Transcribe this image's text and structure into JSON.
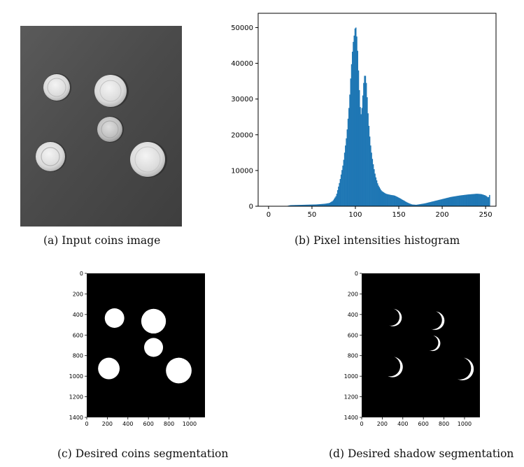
{
  "captions": {
    "a": "(a) Input coins image",
    "b": "(b) Pixel intensities histogram",
    "c": "(c) Desired coins segmentation",
    "d": "(d) Desired shadow segmentation"
  },
  "colors": {
    "histogram_bar": "#1f77b4",
    "photo_background": "#4b4b4b",
    "coin_light": "#e8e8e8",
    "mask_background": "#000000",
    "mask_foreground": "#ffffff"
  },
  "chart_data": [
    {
      "type": "bar",
      "title": "",
      "xlabel": "",
      "ylabel": "",
      "xlim": [
        -12,
        262
      ],
      "ylim": [
        0,
        54000
      ],
      "x_ticks": [
        0,
        50,
        100,
        150,
        200,
        250
      ],
      "y_ticks": [
        0,
        10000,
        20000,
        30000,
        40000,
        50000
      ],
      "grid": false,
      "anchors": [
        [
          0,
          0
        ],
        [
          20,
          0
        ],
        [
          25,
          300
        ],
        [
          40,
          400
        ],
        [
          55,
          500
        ],
        [
          65,
          700
        ],
        [
          70,
          900
        ],
        [
          74,
          1500
        ],
        [
          78,
          3000
        ],
        [
          82,
          7000
        ],
        [
          86,
          12000
        ],
        [
          90,
          20000
        ],
        [
          93,
          29000
        ],
        [
          95,
          38000
        ],
        [
          97,
          45000
        ],
        [
          98,
          47000
        ],
        [
          99,
          48500
        ],
        [
          100,
          51000
        ],
        [
          101,
          49000
        ],
        [
          102,
          46000
        ],
        [
          103,
          41000
        ],
        [
          104,
          35000
        ],
        [
          105,
          30000
        ],
        [
          106,
          25500
        ],
        [
          107,
          26000
        ],
        [
          108,
          29000
        ],
        [
          109,
          33000
        ],
        [
          110,
          36000
        ],
        [
          111,
          37000
        ],
        [
          112,
          36000
        ],
        [
          113,
          33000
        ],
        [
          114,
          28000
        ],
        [
          115,
          24000
        ],
        [
          117,
          18000
        ],
        [
          119,
          14000
        ],
        [
          121,
          11000
        ],
        [
          123,
          8500
        ],
        [
          126,
          6000
        ],
        [
          130,
          4300
        ],
        [
          135,
          3500
        ],
        [
          140,
          3200
        ],
        [
          145,
          3000
        ],
        [
          150,
          2400
        ],
        [
          155,
          1700
        ],
        [
          160,
          1000
        ],
        [
          165,
          500
        ],
        [
          170,
          400
        ],
        [
          180,
          800
        ],
        [
          190,
          1400
        ],
        [
          200,
          2000
        ],
        [
          210,
          2600
        ],
        [
          220,
          3000
        ],
        [
          230,
          3300
        ],
        [
          240,
          3500
        ],
        [
          245,
          3400
        ],
        [
          250,
          3000
        ],
        [
          252,
          2600
        ],
        [
          253,
          2400
        ],
        [
          254,
          2800
        ],
        [
          255,
          3500
        ]
      ]
    },
    {
      "type": "heatmap",
      "title": "",
      "xlabel": "",
      "ylabel": "",
      "xlim": [
        0,
        1150
      ],
      "ylim": [
        1400,
        0
      ],
      "x_ticks": [
        0,
        200,
        400,
        600,
        800,
        1000
      ],
      "y_ticks": [
        0,
        200,
        400,
        600,
        800,
        1000,
        1200,
        1400
      ],
      "coins": [
        {
          "cx": 270,
          "cy": 435,
          "r": 95
        },
        {
          "cx": 650,
          "cy": 465,
          "r": 120
        },
        {
          "cx": 650,
          "cy": 720,
          "r": 92
        },
        {
          "cx": 215,
          "cy": 925,
          "r": 105
        },
        {
          "cx": 895,
          "cy": 945,
          "r": 125
        }
      ]
    },
    {
      "type": "heatmap",
      "title": "",
      "xlabel": "",
      "ylabel": "",
      "xlim": [
        0,
        1150
      ],
      "ylim": [
        1400,
        0
      ],
      "x_ticks": [
        0,
        200,
        400,
        600,
        800,
        1000
      ],
      "y_ticks": [
        0,
        200,
        400,
        600,
        800,
        1000,
        1200,
        1400
      ],
      "shadows": [
        {
          "cx": 305,
          "cy": 430,
          "r": 85,
          "dx": -22,
          "dy": -6
        },
        {
          "cx": 715,
          "cy": 460,
          "r": 90,
          "dx": -24,
          "dy": -6
        },
        {
          "cx": 690,
          "cy": 680,
          "r": 75,
          "dx": -20,
          "dy": -5
        },
        {
          "cx": 300,
          "cy": 910,
          "r": 100,
          "dx": -25,
          "dy": -8
        },
        {
          "cx": 980,
          "cy": 930,
          "r": 110,
          "dx": -26,
          "dy": -8
        }
      ]
    }
  ]
}
